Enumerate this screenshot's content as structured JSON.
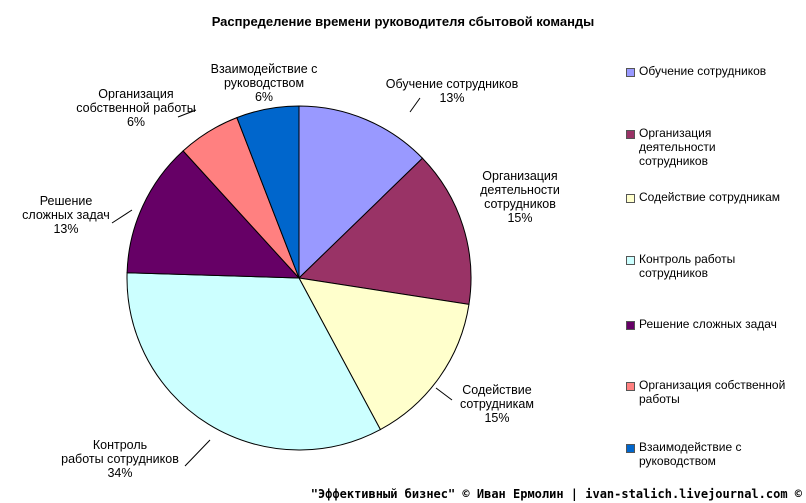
{
  "chart_data": {
    "type": "pie",
    "title": "Распределение времени руководителя сбытовой команды",
    "categories": [
      "Обучение сотрудников",
      "Организация деятельности сотрудников",
      "Содействие сотрудникам",
      "Контроль работы сотрудников",
      "Решение сложных задач",
      "Организация собственной работы",
      "Взаимодействие с руководством"
    ],
    "values": [
      13,
      15,
      15,
      34,
      13,
      6,
      6
    ],
    "colors": [
      "#9999ff",
      "#993366",
      "#ffffcc",
      "#ccffff",
      "#660066",
      "#ff8080",
      "#0066cc"
    ],
    "data_labels": [
      [
        "Обучение сотрудников",
        "13%"
      ],
      [
        "Организация",
        "деятельности",
        "сотрудников",
        "15%"
      ],
      [
        "Содействие",
        "сотрудникам",
        "15%"
      ],
      [
        "Контроль",
        "работы сотрудников",
        "34%"
      ],
      [
        "Решение",
        "сложных задач",
        "13%"
      ],
      [
        "Организация",
        "собственной работы",
        "6%"
      ],
      [
        "Взаимодействие с",
        "руководством",
        "6%"
      ]
    ],
    "legend_lines": [
      [
        "Обучение сотрудников"
      ],
      [
        "Организация",
        "деятельности",
        "сотрудников"
      ],
      [
        "Содействие сотрудникам"
      ],
      [
        "Контроль работы",
        "сотрудников"
      ],
      [
        "Решение сложных задач"
      ],
      [
        "Организация собственной",
        "работы"
      ],
      [
        "Взаимодействие с",
        "руководством"
      ]
    ],
    "legend_position": "right"
  },
  "footer": "\"Эффективный бизнес\" © Иван Ермолин | ivan-stalich.livejournal.com ©"
}
